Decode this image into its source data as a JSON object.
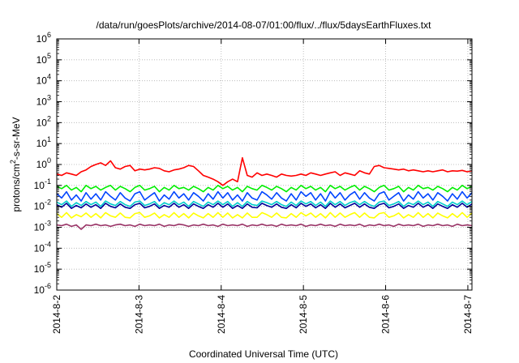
{
  "chart_data": {
    "type": "line",
    "title": "/data/run/goesPlots/archive/2014-08-07/01:00/flux/../flux/5daysEarthFluxes.txt",
    "xlabel": "Coordinated Universal Time (UTC)",
    "ylabel": {
      "prefix": "protons/cm",
      "superscript": "2",
      "suffix": "-s-sr-MeV"
    },
    "yscale": "log",
    "ylim_exponents": [
      -6,
      6
    ],
    "y_ticks": [
      {
        "base": "10",
        "exp": "6"
      },
      {
        "base": "10",
        "exp": "5"
      },
      {
        "base": "10",
        "exp": "4"
      },
      {
        "base": "10",
        "exp": "3"
      },
      {
        "base": "10",
        "exp": "2"
      },
      {
        "base": "10",
        "exp": "1"
      },
      {
        "base": "10",
        "exp": "0"
      },
      {
        "base": "10",
        "exp": "-1"
      },
      {
        "base": "10",
        "exp": "-2"
      },
      {
        "base": "10",
        "exp": "-3"
      },
      {
        "base": "10",
        "exp": "-4"
      },
      {
        "base": "10",
        "exp": "-5"
      },
      {
        "base": "10",
        "exp": "-6"
      }
    ],
    "x_tick_labels": [
      "2014-8-2",
      "2014-8-3",
      "2014-8-4",
      "2014-8-5",
      "2014-8-6",
      "2014-8-7"
    ],
    "xlim_days": [
      0,
      5.05
    ],
    "grid": true,
    "series": [
      {
        "color": "#ff0000",
        "values": [
          0.35,
          0.3,
          0.4,
          0.35,
          0.3,
          0.45,
          0.55,
          0.8,
          1.0,
          1.2,
          0.9,
          1.5,
          0.7,
          0.6,
          0.8,
          0.9,
          0.5,
          0.6,
          0.55,
          0.6,
          0.7,
          0.65,
          0.5,
          0.45,
          0.55,
          0.6,
          0.7,
          0.9,
          0.8,
          0.5,
          0.3,
          0.25,
          0.2,
          0.15,
          0.1,
          0.15,
          0.2,
          0.15,
          2.1,
          0.3,
          0.25,
          0.4,
          0.3,
          0.35,
          0.3,
          0.25,
          0.35,
          0.3,
          0.28,
          0.3,
          0.35,
          0.3,
          0.4,
          0.35,
          0.3,
          0.35,
          0.4,
          0.45,
          0.3,
          0.4,
          0.35,
          0.3,
          0.5,
          0.4,
          0.35,
          0.8,
          0.9,
          0.7,
          0.65,
          0.6,
          0.55,
          0.6,
          0.5,
          0.55,
          0.5,
          0.45,
          0.5,
          0.45,
          0.5,
          0.55,
          0.45,
          0.5,
          0.48,
          0.52,
          0.45,
          0.5
        ]
      },
      {
        "color": "#00ee00",
        "values": [
          0.09,
          0.07,
          0.1,
          0.06,
          0.08,
          0.05,
          0.1,
          0.07,
          0.09,
          0.06,
          0.08,
          0.1,
          0.06,
          0.09,
          0.07,
          0.05,
          0.08,
          0.1,
          0.06,
          0.07,
          0.09,
          0.05,
          0.08,
          0.06,
          0.1,
          0.07,
          0.08,
          0.06,
          0.09,
          0.07,
          0.05,
          0.08,
          0.06,
          0.1,
          0.07,
          0.09,
          0.06,
          0.08,
          0.05,
          0.09,
          0.07,
          0.06,
          0.1,
          0.08,
          0.06,
          0.09,
          0.07,
          0.05,
          0.08,
          0.06,
          0.1,
          0.07,
          0.09,
          0.06,
          0.08,
          0.05,
          0.1,
          0.07,
          0.09,
          0.06,
          0.08,
          0.1,
          0.06,
          0.09,
          0.07,
          0.05,
          0.08,
          0.1,
          0.06,
          0.07,
          0.09,
          0.05,
          0.08,
          0.06,
          0.1,
          0.07,
          0.08,
          0.06,
          0.09,
          0.07,
          0.05,
          0.08,
          0.06,
          0.1,
          0.07,
          0.09
        ]
      },
      {
        "color": "#0044ff",
        "values": [
          0.04,
          0.025,
          0.05,
          0.02,
          0.035,
          0.018,
          0.045,
          0.022,
          0.04,
          0.02,
          0.05,
          0.03,
          0.02,
          0.045,
          0.025,
          0.018,
          0.04,
          0.05,
          0.02,
          0.03,
          0.045,
          0.018,
          0.035,
          0.022,
          0.05,
          0.025,
          0.04,
          0.02,
          0.045,
          0.03,
          0.018,
          0.04,
          0.022,
          0.05,
          0.025,
          0.045,
          0.02,
          0.035,
          0.018,
          0.045,
          0.025,
          0.02,
          0.05,
          0.035,
          0.022,
          0.045,
          0.025,
          0.018,
          0.04,
          0.02,
          0.05,
          0.03,
          0.045,
          0.02,
          0.04,
          0.018,
          0.05,
          0.025,
          0.045,
          0.02,
          0.035,
          0.05,
          0.022,
          0.045,
          0.025,
          0.018,
          0.04,
          0.05,
          0.02,
          0.03,
          0.045,
          0.018,
          0.035,
          0.022,
          0.05,
          0.025,
          0.04,
          0.02,
          0.045,
          0.03,
          0.018,
          0.04,
          0.022,
          0.05,
          0.025,
          0.045
        ]
      },
      {
        "color": "#00cccc",
        "values": [
          0.016,
          0.012,
          0.018,
          0.01,
          0.015,
          0.011,
          0.017,
          0.012,
          0.016,
          0.01,
          0.018,
          0.013,
          0.011,
          0.017,
          0.012,
          0.01,
          0.016,
          0.018,
          0.011,
          0.013,
          0.017,
          0.01,
          0.015,
          0.012,
          0.018,
          0.012,
          0.016,
          0.01,
          0.017,
          0.013,
          0.01,
          0.016,
          0.012,
          0.018,
          0.012,
          0.017,
          0.01,
          0.015,
          0.01,
          0.017,
          0.012,
          0.011,
          0.018,
          0.015,
          0.012,
          0.017,
          0.012,
          0.01,
          0.016,
          0.011,
          0.018,
          0.013,
          0.017,
          0.011,
          0.016,
          0.01,
          0.018,
          0.012,
          0.017,
          0.011,
          0.015,
          0.018,
          0.012,
          0.017,
          0.012,
          0.01,
          0.016,
          0.018,
          0.011,
          0.013,
          0.017,
          0.01,
          0.015,
          0.012,
          0.018,
          0.012,
          0.016,
          0.01,
          0.017,
          0.013,
          0.01,
          0.016,
          0.012,
          0.018,
          0.012,
          0.017
        ]
      },
      {
        "color": "#000099",
        "values": [
          0.012,
          0.009,
          0.014,
          0.008,
          0.011,
          0.0085,
          0.013,
          0.009,
          0.012,
          0.008,
          0.014,
          0.01,
          0.0085,
          0.013,
          0.009,
          0.008,
          0.012,
          0.014,
          0.0085,
          0.01,
          0.013,
          0.008,
          0.011,
          0.009,
          0.014,
          0.009,
          0.012,
          0.008,
          0.013,
          0.01,
          0.008,
          0.012,
          0.009,
          0.014,
          0.009,
          0.013,
          0.008,
          0.011,
          0.008,
          0.013,
          0.009,
          0.0085,
          0.014,
          0.011,
          0.009,
          0.013,
          0.009,
          0.008,
          0.012,
          0.0085,
          0.014,
          0.01,
          0.013,
          0.0085,
          0.012,
          0.008,
          0.014,
          0.009,
          0.013,
          0.0085,
          0.011,
          0.014,
          0.009,
          0.013,
          0.009,
          0.008,
          0.012,
          0.014,
          0.0085,
          0.01,
          0.013,
          0.008,
          0.011,
          0.009,
          0.014,
          0.009,
          0.012,
          0.008,
          0.013,
          0.01,
          0.008,
          0.012,
          0.009,
          0.014,
          0.009,
          0.013
        ]
      },
      {
        "color": "#ffff00",
        "values": [
          0.0045,
          0.003,
          0.005,
          0.0028,
          0.004,
          0.0032,
          0.0048,
          0.003,
          0.0045,
          0.0028,
          0.005,
          0.0035,
          0.003,
          0.0048,
          0.003,
          0.0028,
          0.0045,
          0.005,
          0.003,
          0.0035,
          0.0048,
          0.0028,
          0.004,
          0.003,
          0.005,
          0.003,
          0.0045,
          0.0028,
          0.0048,
          0.0035,
          0.0028,
          0.0045,
          0.003,
          0.005,
          0.003,
          0.0048,
          0.0028,
          0.004,
          0.0028,
          0.0048,
          0.003,
          0.003,
          0.005,
          0.004,
          0.003,
          0.0048,
          0.003,
          0.0028,
          0.0045,
          0.003,
          0.005,
          0.0035,
          0.0048,
          0.003,
          0.0045,
          0.0028,
          0.005,
          0.003,
          0.0048,
          0.003,
          0.004,
          0.005,
          0.003,
          0.0048,
          0.003,
          0.0028,
          0.0045,
          0.005,
          0.003,
          0.0035,
          0.0048,
          0.0028,
          0.004,
          0.003,
          0.005,
          0.003,
          0.0045,
          0.0028,
          0.0048,
          0.0035,
          0.0028,
          0.0045,
          0.003,
          0.005,
          0.003,
          0.0048
        ]
      },
      {
        "color": "#993366",
        "values": [
          0.0013,
          0.0012,
          0.0014,
          0.0011,
          0.0013,
          0.0008,
          0.0013,
          0.0012,
          0.0014,
          0.0012,
          0.0013,
          0.0011,
          0.0013,
          0.0014,
          0.0012,
          0.0013,
          0.0011,
          0.0014,
          0.0012,
          0.0013,
          0.0012,
          0.0014,
          0.0011,
          0.0013,
          0.0012,
          0.0014,
          0.0013,
          0.0011,
          0.0013,
          0.0012,
          0.0014,
          0.0012,
          0.0013,
          0.0011,
          0.0014,
          0.0012,
          0.0013,
          0.0012,
          0.0014,
          0.0011,
          0.0013,
          0.0012,
          0.0014,
          0.0012,
          0.0013,
          0.0011,
          0.0014,
          0.0012,
          0.0013,
          0.0012,
          0.0014,
          0.0011,
          0.0013,
          0.0012,
          0.0014,
          0.0012,
          0.0013,
          0.0011,
          0.0014,
          0.0012,
          0.0013,
          0.0012,
          0.0014,
          0.0011,
          0.0013,
          0.0012,
          0.0014,
          0.0012,
          0.0013,
          0.0011,
          0.0014,
          0.0012,
          0.0013,
          0.0012,
          0.0014,
          0.0011,
          0.0013,
          0.0012,
          0.0014,
          0.0012,
          0.0013,
          0.0011,
          0.0014,
          0.0012,
          0.0013,
          0.0012
        ]
      }
    ]
  }
}
